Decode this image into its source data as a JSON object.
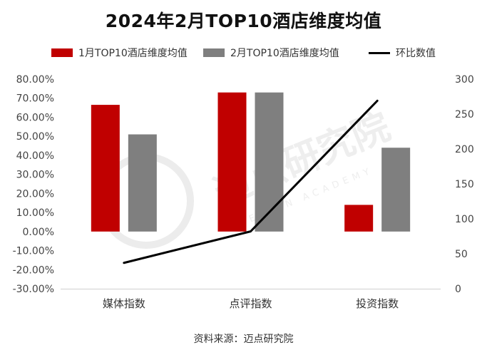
{
  "title": "2024年2月TOP10酒店维度均值",
  "source": "资料来源：迈点研究院",
  "watermark": {
    "text": "迈点研究院",
    "subtext": "MEADIN ACADEMY"
  },
  "chart_data": {
    "type": "bar",
    "categories": [
      "媒体指数",
      "点评指数",
      "投资指数"
    ],
    "series": [
      {
        "name": "1月TOP10酒店维度均值",
        "type": "bar",
        "axis": "left",
        "color": "#c00000",
        "values": [
          0.665,
          0.73,
          0.14
        ]
      },
      {
        "name": "2月TOP10酒店维度均值",
        "type": "bar",
        "axis": "left",
        "color": "#7f7f7f",
        "values": [
          0.51,
          0.73,
          0.44
        ]
      },
      {
        "name": "环比数值",
        "type": "line",
        "axis": "right",
        "color": "#000000",
        "values": [
          37,
          82,
          269
        ]
      }
    ],
    "y_left": {
      "min": -0.3,
      "max": 0.8,
      "step": 0.1,
      "ticks": [
        "80.00%",
        "70.00%",
        "60.00%",
        "50.00%",
        "40.00%",
        "30.00%",
        "20.00%",
        "10.00%",
        "0.00%",
        "-10.00%",
        "-20.00%",
        "-30.00%"
      ]
    },
    "y_right": {
      "min": 0,
      "max": 300,
      "step": 50,
      "ticks": [
        "300",
        "250",
        "200",
        "150",
        "100",
        "50",
        "0"
      ]
    },
    "grid": false,
    "legend_position": "top"
  }
}
